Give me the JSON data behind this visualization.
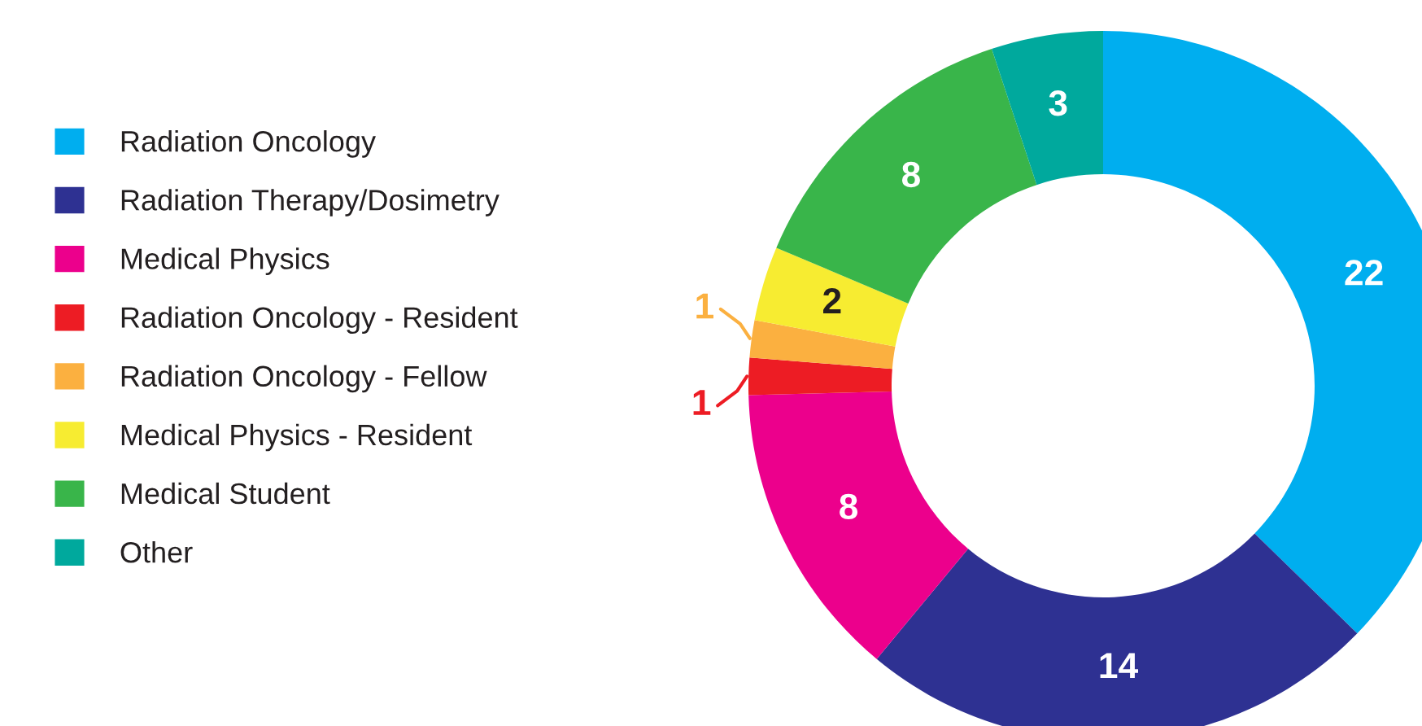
{
  "chart_data": {
    "type": "donut",
    "categories": [
      "Radiation Oncology",
      "Radiation Therapy/Dosimetry",
      "Medical Physics",
      "Radiation Oncology - Resident",
      "Radiation Oncology - Fellow",
      "Medical Physics - Resident",
      "Medical Student",
      "Other"
    ],
    "values": [
      22,
      14,
      8,
      1,
      1,
      2,
      8,
      3
    ],
    "colors": [
      "#00aeef",
      "#2e3192",
      "#ec008c",
      "#ed1c24",
      "#fbb040",
      "#f7ec31",
      "#39b54a",
      "#00a99d"
    ],
    "data_labels": true,
    "legend": "left"
  }
}
